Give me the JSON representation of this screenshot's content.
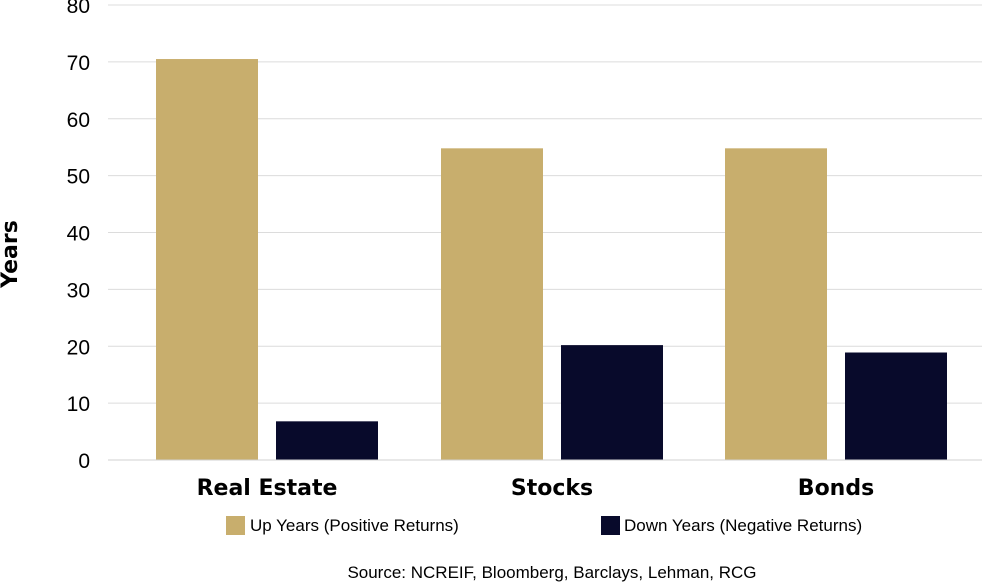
{
  "chart_data": {
    "type": "bar",
    "categories": [
      "Real Estate",
      "Stocks",
      "Bonds"
    ],
    "series": [
      {
        "name": "Up Years (Positive Returns)",
        "values": [
          70.5,
          54.8,
          54.8
        ],
        "color": "#c8ae6d"
      },
      {
        "name": "Down Years (Negative Returns)",
        "values": [
          6.8,
          20.2,
          18.9
        ],
        "color": "#080a2b"
      }
    ],
    "ylabel": "Years",
    "xlabel": "",
    "ylim": [
      0,
      80
    ],
    "yticks": [
      0,
      10,
      20,
      30,
      40,
      50,
      60,
      70,
      80
    ],
    "grid": true,
    "legend_position": "bottom",
    "source": "Source: NCREIF, Bloomberg, Barclays, Lehman, RCG"
  }
}
